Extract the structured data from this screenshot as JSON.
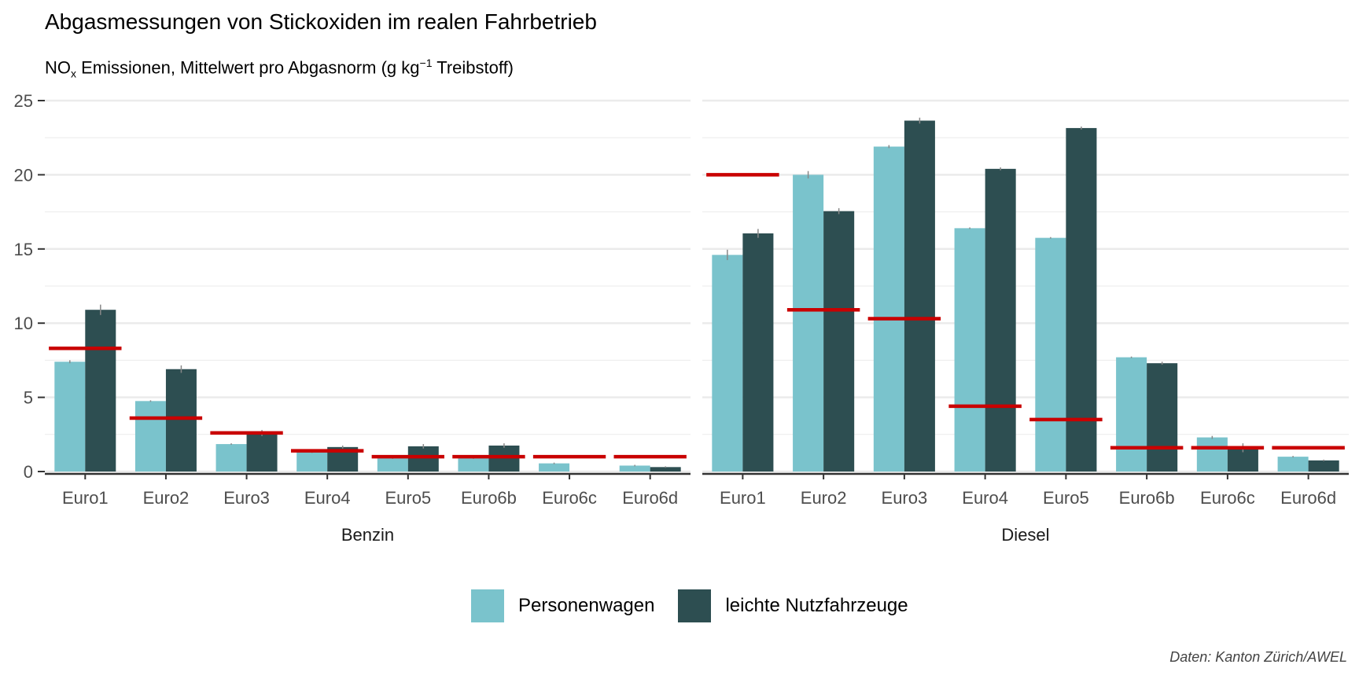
{
  "title": "Abgasmessungen von Stickoxiden im realen Fahrbetrieb",
  "subtitle": {
    "prefix": "NO",
    "sub": "x",
    "middle": " Emissionen, Mittelwert pro Abgasnorm (g kg",
    "sup": "−1",
    "suffix": " Treibstoff)"
  },
  "caption": "Daten: Kanton Zürich/AWEL",
  "legend": [
    {
      "label": "Personenwagen",
      "color": "#7ac3cc"
    },
    {
      "label": "leichte Nutzfahrzeuge",
      "color": "#2d4e51"
    }
  ],
  "colors": {
    "limit": "#c90000",
    "grid": "#ebebeb",
    "axis": "#333333",
    "errorbar": "#888888"
  },
  "chart_data": {
    "type": "bar",
    "y_ticks": [
      0,
      5,
      10,
      15,
      20,
      25
    ],
    "ylim": [
      0,
      25
    ],
    "grid": true,
    "legend_position": "bottom",
    "categories": [
      "Euro1",
      "Euro2",
      "Euro3",
      "Euro4",
      "Euro5",
      "Euro6b",
      "Euro6c",
      "Euro6d"
    ],
    "panels": [
      {
        "name": "Benzin",
        "series": [
          {
            "name": "Personenwagen",
            "values": [
              7.4,
              4.75,
              1.85,
              1.3,
              0.9,
              0.9,
              0.55,
              0.4
            ],
            "errors": [
              0.1,
              0.05,
              0.05,
              0.05,
              0.05,
              0.05,
              0.05,
              0.05
            ]
          },
          {
            "name": "leichte Nutzfahrzeuge",
            "values": [
              10.9,
              6.9,
              2.6,
              1.65,
              1.7,
              1.75,
              0,
              0.3
            ],
            "errors": [
              0.35,
              0.25,
              0.2,
              0.1,
              0.15,
              0.15,
              0,
              0.05
            ]
          }
        ],
        "limits": [
          8.3,
          3.6,
          2.6,
          1.4,
          1.0,
          1.0,
          1.0,
          1.0
        ]
      },
      {
        "name": "Diesel",
        "series": [
          {
            "name": "Personenwagen",
            "values": [
              14.6,
              20.0,
              21.9,
              16.4,
              15.75,
              7.7,
              2.3,
              1.0
            ],
            "errors": [
              0.35,
              0.25,
              0.1,
              0.05,
              0.05,
              0.05,
              0.1,
              0.05
            ]
          },
          {
            "name": "leichte Nutzfahrzeuge",
            "values": [
              16.05,
              17.55,
              23.65,
              20.4,
              23.15,
              7.3,
              1.6,
              0.75
            ],
            "errors": [
              0.3,
              0.2,
              0.2,
              0.1,
              0.1,
              0.1,
              0.3,
              0.05
            ]
          }
        ],
        "limits": [
          20.0,
          10.9,
          10.3,
          4.4,
          3.5,
          1.6,
          1.6,
          1.6
        ]
      }
    ]
  }
}
